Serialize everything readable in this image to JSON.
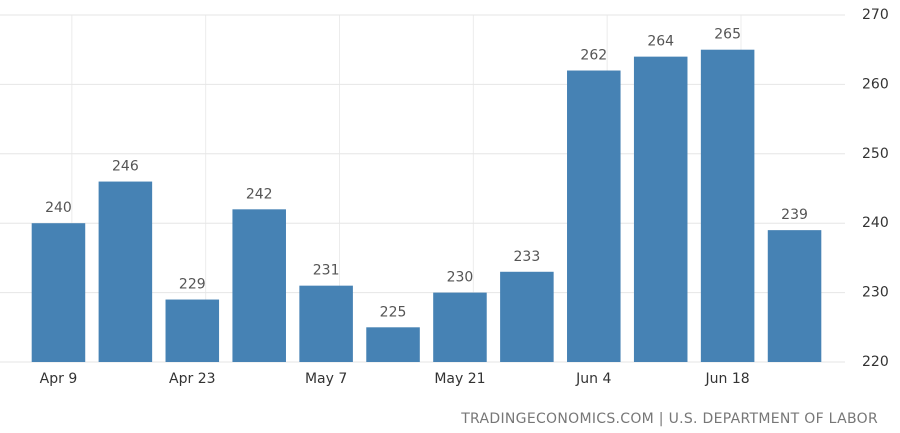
{
  "chart_data": {
    "type": "bar",
    "categories": [
      "Apr 9",
      null,
      "Apr 23",
      null,
      "May 7",
      null,
      "May 21",
      null,
      "Jun 4",
      null,
      "Jun 18",
      null
    ],
    "values": [
      240,
      246,
      229,
      242,
      231,
      225,
      230,
      233,
      262,
      264,
      265,
      239
    ],
    "color": "#4682b4",
    "ylim": [
      220,
      270
    ],
    "yticks": [
      220,
      230,
      240,
      250,
      260,
      270
    ],
    "grid": true,
    "source": "TRADINGECONOMICS.COM | U.S. DEPARTMENT OF LABOR"
  }
}
